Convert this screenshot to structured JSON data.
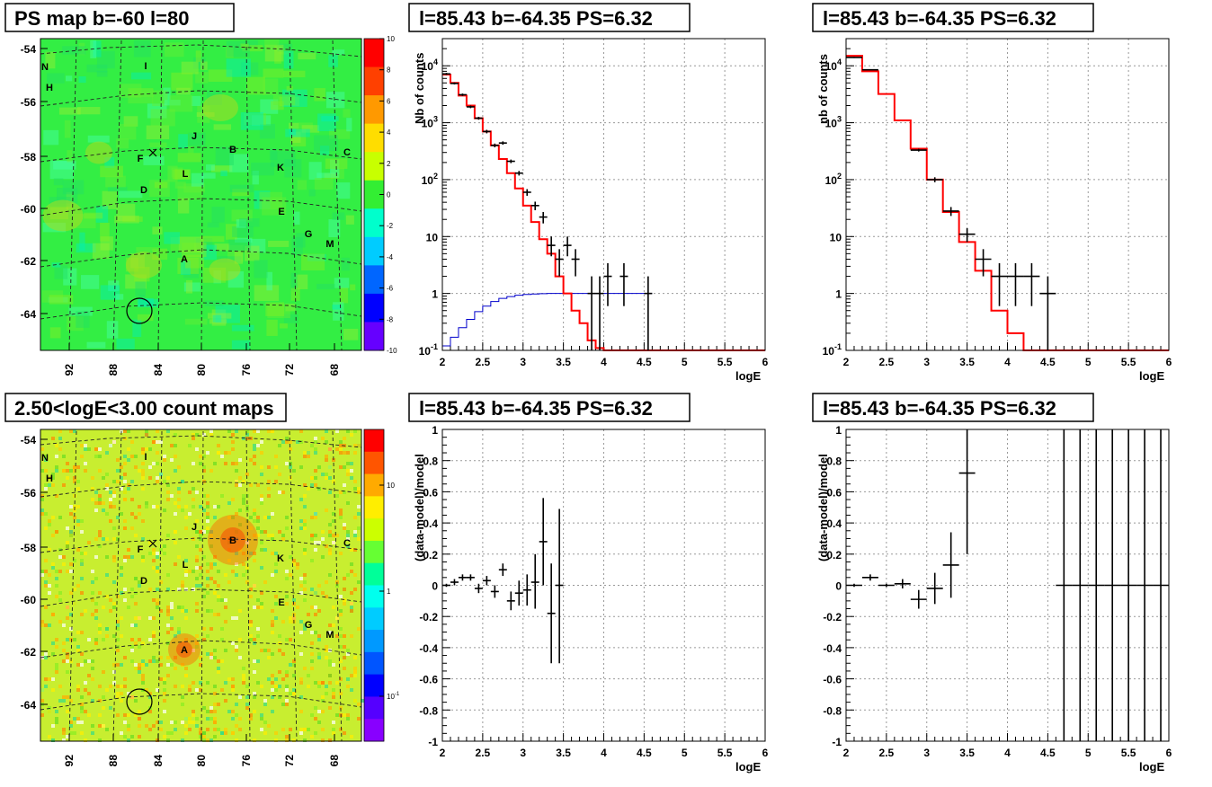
{
  "map_panels": [
    {
      "title": "PS map b=-60 l=80",
      "kind": "ps",
      "colorbar_labels": [
        "10",
        "8",
        "6",
        "4",
        "2",
        "0",
        "-2",
        "-4",
        "-6",
        "-8",
        "-10"
      ],
      "colorbar_colors": [
        "#ff0000",
        "#ff4000",
        "#ff9900",
        "#ffdd00",
        "#c8ff00",
        "#33ee33",
        "#00ffcc",
        "#00ccff",
        "#0066ff",
        "#0000ff",
        "#6600ff"
      ]
    },
    {
      "title": "2.50<logE<3.00 count maps",
      "kind": "count",
      "colorbar_labels": [
        "10",
        "1",
        "10^-1"
      ],
      "colorbar_colors": [
        "#ff0000",
        "#ff5500",
        "#ffaa00",
        "#ffee00",
        "#ccff00",
        "#66ff33",
        "#00ff99",
        "#00ffee",
        "#00ccff",
        "#0099ff",
        "#0055ff",
        "#0000ff",
        "#5500ff",
        "#8800ff"
      ]
    }
  ],
  "map_axes": {
    "y_ticks": [
      "-54",
      "-56",
      "-58",
      "-60",
      "-62",
      "-64"
    ],
    "x_ticks": [
      "92",
      "88",
      "84",
      "80",
      "76",
      "72",
      "68"
    ]
  },
  "map_sources": [
    "N",
    "H",
    "I",
    "J",
    "B",
    "C",
    "F",
    "K",
    "L",
    "D",
    "E",
    "G",
    "M",
    "A"
  ],
  "chart_data": [
    {
      "type": "line",
      "title": "l=85.43 b=-64.35 PS=6.32",
      "xlabel": "logE",
      "ylabel": "Nb of counts",
      "xlim": [
        2,
        6
      ],
      "ylim": [
        0.1,
        30000
      ],
      "yscale": "log",
      "grid": true,
      "x_ticks": [
        "2",
        "2.5",
        "3",
        "3.5",
        "4",
        "4.5",
        "5",
        "5.5",
        "6"
      ],
      "y_ticks": [
        "10^-1",
        "1",
        "10",
        "10^2",
        "10^3",
        "10^4"
      ],
      "model_steps": {
        "edges": [
          2.0,
          2.1,
          2.2,
          2.3,
          2.4,
          2.5,
          2.6,
          2.7,
          2.8,
          2.9,
          3.0,
          3.1,
          3.2,
          3.3,
          3.4,
          3.5,
          3.6,
          3.7,
          3.8,
          3.9,
          4.0,
          6.0
        ],
        "values": [
          7000,
          5000,
          3000,
          2000,
          1200,
          700,
          400,
          230,
          130,
          70,
          35,
          18,
          9,
          5,
          2,
          1,
          0.5,
          0.3,
          0.15,
          0.11,
          0.1
        ]
      },
      "acceptance_steps": {
        "edges": [
          2.0,
          2.1,
          2.2,
          2.3,
          2.4,
          2.5,
          2.6,
          2.7,
          2.8,
          2.9,
          3.0,
          3.1,
          3.2,
          3.3,
          3.4,
          3.5,
          4.6
        ],
        "values": [
          0.12,
          0.17,
          0.25,
          0.35,
          0.48,
          0.6,
          0.72,
          0.82,
          0.88,
          0.93,
          0.96,
          0.98,
          0.99,
          1.0,
          1.0,
          1.0
        ]
      },
      "data_points": [
        {
          "x": 2.05,
          "y": 7200,
          "ylo": 6900,
          "yhi": 7500
        },
        {
          "x": 2.15,
          "y": 4900,
          "ylo": 4700,
          "yhi": 5100
        },
        {
          "x": 2.25,
          "y": 3100,
          "ylo": 2950,
          "yhi": 3250
        },
        {
          "x": 2.35,
          "y": 1900,
          "ylo": 1800,
          "yhi": 2000
        },
        {
          "x": 2.45,
          "y": 1200,
          "ylo": 1130,
          "yhi": 1270
        },
        {
          "x": 2.55,
          "y": 700,
          "ylo": 650,
          "yhi": 750
        },
        {
          "x": 2.65,
          "y": 400,
          "ylo": 370,
          "yhi": 430
        },
        {
          "x": 2.75,
          "y": 440,
          "ylo": 410,
          "yhi": 470
        },
        {
          "x": 2.85,
          "y": 210,
          "ylo": 195,
          "yhi": 225
        },
        {
          "x": 2.95,
          "y": 130,
          "ylo": 118,
          "yhi": 142
        },
        {
          "x": 3.05,
          "y": 60,
          "ylo": 52,
          "yhi": 68
        },
        {
          "x": 3.15,
          "y": 35,
          "ylo": 29,
          "yhi": 41
        },
        {
          "x": 3.25,
          "y": 22,
          "ylo": 17,
          "yhi": 27
        },
        {
          "x": 3.35,
          "y": 7,
          "ylo": 4.5,
          "yhi": 10
        },
        {
          "x": 3.45,
          "y": 4,
          "ylo": 2,
          "yhi": 6
        },
        {
          "x": 3.55,
          "y": 7,
          "ylo": 4.5,
          "yhi": 10
        },
        {
          "x": 3.65,
          "y": 4,
          "ylo": 2,
          "yhi": 6
        },
        {
          "x": 3.85,
          "y": 1,
          "ylo": 0.1,
          "yhi": 2
        },
        {
          "x": 3.95,
          "y": 1,
          "ylo": 0.1,
          "yhi": 2
        },
        {
          "x": 4.05,
          "y": 2,
          "ylo": 0.6,
          "yhi": 3.4
        },
        {
          "x": 4.25,
          "y": 2,
          "ylo": 0.6,
          "yhi": 3.4
        },
        {
          "x": 4.55,
          "y": 1,
          "ylo": 0.1,
          "yhi": 2
        }
      ]
    },
    {
      "type": "line",
      "title": "l=85.43 b=-64.35 PS=6.32",
      "xlabel": "logE",
      "ylabel": "nb of counts",
      "xlim": [
        2,
        6
      ],
      "ylim": [
        0.1,
        30000
      ],
      "yscale": "log",
      "grid": true,
      "x_ticks": [
        "2",
        "2.5",
        "3",
        "3.5",
        "4",
        "4.5",
        "5",
        "5.5",
        "6"
      ],
      "y_ticks": [
        "10^-1",
        "1",
        "10",
        "10^2",
        "10^3",
        "10^4"
      ],
      "model_steps": {
        "edges": [
          2.0,
          2.2,
          2.4,
          2.6,
          2.8,
          3.0,
          3.2,
          3.4,
          3.6,
          3.8,
          4.0,
          4.2,
          4.4,
          6.0
        ],
        "values": [
          15000,
          8000,
          3200,
          1100,
          350,
          100,
          27,
          8,
          2.5,
          0.5,
          0.2,
          0.1,
          0.1
        ]
      },
      "data_points": [
        {
          "x": 2.1,
          "y": 14000,
          "ylo": 13700,
          "yhi": 14300
        },
        {
          "x": 2.3,
          "y": 8500,
          "ylo": 8300,
          "yhi": 8700
        },
        {
          "x": 2.9,
          "y": 330,
          "ylo": 312,
          "yhi": 348
        },
        {
          "x": 3.1,
          "y": 100,
          "ylo": 90,
          "yhi": 110
        },
        {
          "x": 3.3,
          "y": 28,
          "ylo": 23,
          "yhi": 33
        },
        {
          "x": 3.5,
          "y": 11,
          "ylo": 8,
          "yhi": 14
        },
        {
          "x": 3.7,
          "y": 4,
          "ylo": 2,
          "yhi": 6
        },
        {
          "x": 3.9,
          "y": 2,
          "ylo": 0.6,
          "yhi": 3.4
        },
        {
          "x": 4.1,
          "y": 2,
          "ylo": 0.6,
          "yhi": 3.4
        },
        {
          "x": 4.3,
          "y": 2,
          "ylo": 0.6,
          "yhi": 3.4
        },
        {
          "x": 4.5,
          "y": 1,
          "ylo": 0.1,
          "yhi": 2
        }
      ]
    },
    {
      "type": "scatter",
      "title": "l=85.43 b=-64.35 PS=6.32",
      "xlabel": "logE",
      "ylabel": "(data-model)/model",
      "xlim": [
        2,
        6
      ],
      "ylim": [
        -1,
        1
      ],
      "grid": true,
      "x_ticks": [
        "2",
        "2.5",
        "3",
        "3.5",
        "4",
        "4.5",
        "5",
        "5.5",
        "6"
      ],
      "y_ticks": [
        "-1",
        "-0.8",
        "-0.6",
        "-0.4",
        "-0.2",
        "0",
        "0.2",
        "0.4",
        "0.6",
        "0.8",
        "1"
      ],
      "half_width": 0.05,
      "data_points": [
        {
          "x": 2.05,
          "y": 0.0,
          "ylo": -0.01,
          "yhi": 0.01
        },
        {
          "x": 2.15,
          "y": 0.02,
          "ylo": 0.0,
          "yhi": 0.04
        },
        {
          "x": 2.25,
          "y": 0.05,
          "ylo": 0.03,
          "yhi": 0.07
        },
        {
          "x": 2.35,
          "y": 0.05,
          "ylo": 0.03,
          "yhi": 0.07
        },
        {
          "x": 2.45,
          "y": -0.02,
          "ylo": -0.05,
          "yhi": 0.01
        },
        {
          "x": 2.55,
          "y": 0.03,
          "ylo": 0.0,
          "yhi": 0.06
        },
        {
          "x": 2.65,
          "y": -0.04,
          "ylo": -0.08,
          "yhi": 0.0
        },
        {
          "x": 2.75,
          "y": 0.1,
          "ylo": 0.06,
          "yhi": 0.14
        },
        {
          "x": 2.85,
          "y": -0.1,
          "ylo": -0.16,
          "yhi": -0.04
        },
        {
          "x": 2.95,
          "y": -0.05,
          "ylo": -0.13,
          "yhi": 0.03
        },
        {
          "x": 3.05,
          "y": -0.03,
          "ylo": -0.13,
          "yhi": 0.07
        },
        {
          "x": 3.15,
          "y": 0.02,
          "ylo": -0.15,
          "yhi": 0.2
        },
        {
          "x": 3.25,
          "y": 0.28,
          "ylo": 0.0,
          "yhi": 0.56
        },
        {
          "x": 3.35,
          "y": -0.18,
          "ylo": -0.5,
          "yhi": 0.14
        },
        {
          "x": 3.45,
          "y": 0.0,
          "ylo": -0.5,
          "yhi": 0.49
        }
      ]
    },
    {
      "type": "scatter",
      "title": "l=85.43 b=-64.35 PS=6.32",
      "xlabel": "logE",
      "ylabel": "(data-model)/model",
      "xlim": [
        2,
        6
      ],
      "ylim": [
        -1,
        1
      ],
      "grid": true,
      "x_ticks": [
        "2",
        "2.5",
        "3",
        "3.5",
        "4",
        "4.5",
        "5",
        "5.5",
        "6"
      ],
      "y_ticks": [
        "-1",
        "-0.8",
        "-0.6",
        "-0.4",
        "-0.2",
        "0",
        "0.2",
        "0.4",
        "0.6",
        "0.8",
        "1"
      ],
      "half_width": 0.1,
      "data_points": [
        {
          "x": 2.1,
          "y": 0.0,
          "ylo": -0.01,
          "yhi": 0.01
        },
        {
          "x": 2.3,
          "y": 0.05,
          "ylo": 0.03,
          "yhi": 0.07
        },
        {
          "x": 2.5,
          "y": 0.0,
          "ylo": -0.01,
          "yhi": 0.01
        },
        {
          "x": 2.7,
          "y": 0.01,
          "ylo": -0.02,
          "yhi": 0.04
        },
        {
          "x": 2.9,
          "y": -0.09,
          "ylo": -0.15,
          "yhi": -0.03
        },
        {
          "x": 3.1,
          "y": -0.02,
          "ylo": -0.12,
          "yhi": 0.08
        },
        {
          "x": 3.3,
          "y": 0.13,
          "ylo": -0.08,
          "yhi": 0.34
        },
        {
          "x": 3.5,
          "y": 0.72,
          "ylo": 0.2,
          "yhi": 1.2
        },
        {
          "x": 4.7,
          "y": 0.0,
          "ylo": -1.2,
          "yhi": 1.2
        },
        {
          "x": 4.9,
          "y": 0.0,
          "ylo": -1.2,
          "yhi": 1.2
        },
        {
          "x": 5.1,
          "y": 0.0,
          "ylo": -1.2,
          "yhi": 1.2
        },
        {
          "x": 5.3,
          "y": 0.0,
          "ylo": -1.2,
          "yhi": 1.2
        },
        {
          "x": 5.5,
          "y": 0.0,
          "ylo": -1.2,
          "yhi": 1.2
        },
        {
          "x": 5.7,
          "y": 0.0,
          "ylo": -1.2,
          "yhi": 1.2
        },
        {
          "x": 5.9,
          "y": 0.0,
          "ylo": -1.2,
          "yhi": 1.2
        }
      ]
    }
  ],
  "colors": {
    "model": "#ff0000",
    "acceptance": "#0000cc",
    "data": "#000000",
    "grid": "#999999"
  }
}
